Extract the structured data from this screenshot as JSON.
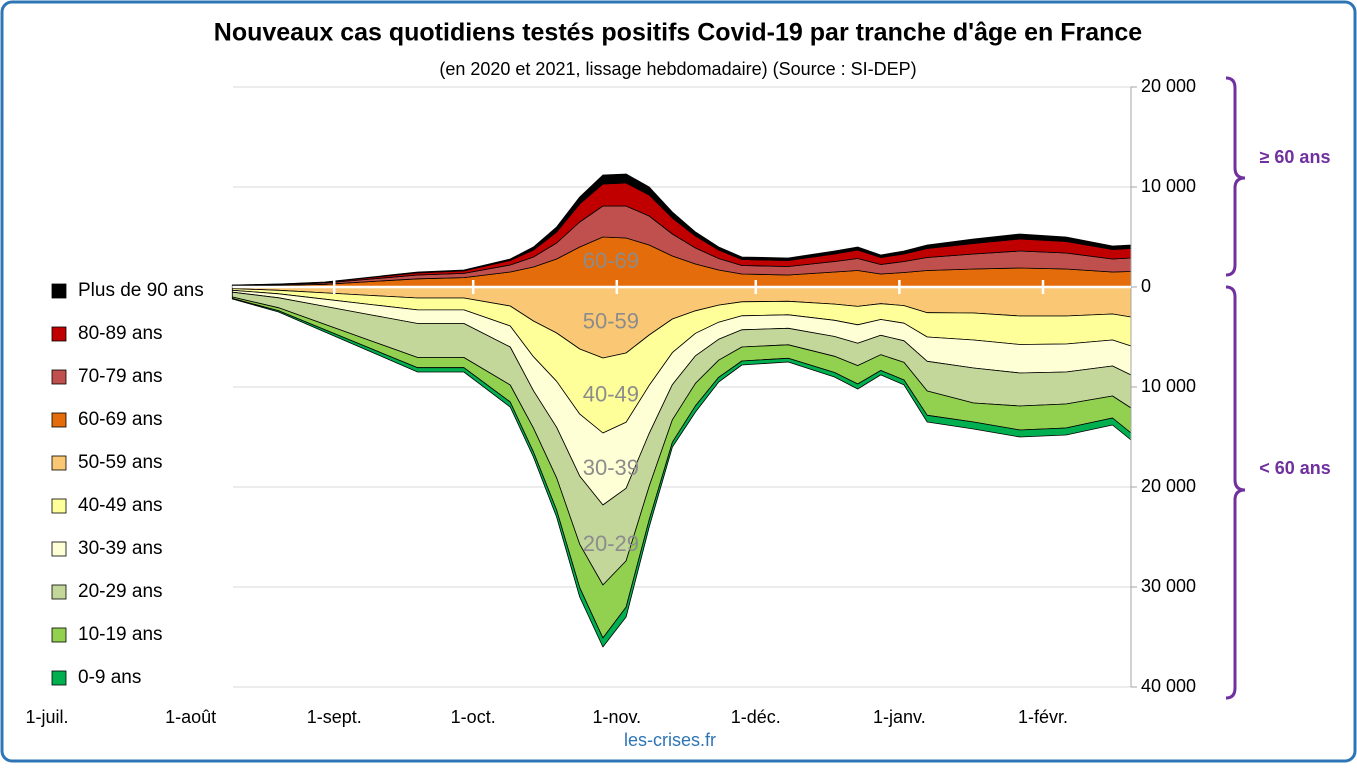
{
  "chart_data": {
    "type": "area",
    "stacked": true,
    "title": "Nouveaux cas quotidiens testés positifs Covid-19 par tranche d'âge en France",
    "subtitle": "(en 2020 et 2021, lissage hebdomadaire) (Source : SI-DEP)",
    "x": [
      40,
      50,
      60,
      70,
      80,
      90,
      100,
      105,
      110,
      115,
      120,
      125,
      130,
      135,
      140,
      145,
      150,
      160,
      170,
      175,
      180,
      185,
      190,
      200,
      210,
      220,
      230,
      234
    ],
    "xlim": [
      0,
      234
    ],
    "xticks": [
      {
        "value": 0,
        "label": "1-juil."
      },
      {
        "value": 31,
        "label": "1-août"
      },
      {
        "value": 62,
        "label": "1-sept."
      },
      {
        "value": 92,
        "label": "1-oct."
      },
      {
        "value": 123,
        "label": "1-nov."
      },
      {
        "value": 153,
        "label": "1-déc."
      },
      {
        "value": 184,
        "label": "1-janv."
      },
      {
        "value": 215,
        "label": "1-févr."
      }
    ],
    "ylim": [
      -40000,
      20000
    ],
    "yticks": [
      {
        "value": 20000,
        "label": "20 000"
      },
      {
        "value": 10000,
        "label": "10 000"
      },
      0,
      {
        "value": -10000,
        "label": "10 000"
      },
      {
        "value": -20000,
        "label": "20 000"
      },
      {
        "value": -30000,
        "label": "30 000"
      },
      {
        "value": -40000,
        "label": "40 000"
      }
    ],
    "grid": true,
    "legend": "left",
    "series": [
      {
        "name": "Plus de 90 ans",
        "color": "#000000",
        "values": [
          10,
          15,
          25,
          50,
          75,
          85,
          150,
          300,
          500,
          700,
          900,
          900,
          800,
          600,
          400,
          300,
          250,
          250,
          300,
          300,
          250,
          300,
          350,
          450,
          500,
          450,
          350,
          350
        ]
      },
      {
        "name": "80-89 ans",
        "color": "#c00000",
        "values": [
          30,
          45,
          75,
          150,
          225,
          255,
          450,
          700,
          1100,
          1800,
          2200,
          2300,
          2100,
          1600,
          1200,
          850,
          600,
          600,
          750,
          850,
          700,
          750,
          900,
          1050,
          1200,
          1150,
          950,
          950
        ]
      },
      {
        "name": "70-79 ans",
        "color": "#c0504d",
        "values": [
          50,
          75,
          125,
          250,
          375,
          425,
          700,
          1000,
          1600,
          2500,
          3100,
          3200,
          2900,
          2200,
          1600,
          1150,
          850,
          850,
          1050,
          1200,
          950,
          1100,
          1300,
          1500,
          1700,
          1600,
          1300,
          1350
        ]
      },
      {
        "name": "60-69 ans",
        "color": "#e46c0a",
        "values": [
          110,
          165,
          275,
          550,
          825,
          935,
          1500,
          2000,
          2800,
          4000,
          5000,
          4900,
          4200,
          3100,
          2300,
          1700,
          1300,
          1200,
          1500,
          1650,
          1300,
          1450,
          1650,
          1800,
          1900,
          1800,
          1500,
          1550
        ]
      },
      {
        "name": "50-59 ans",
        "color": "#fac775",
        "values": [
          -160,
          -330,
          -590,
          -850,
          -1100,
          -1100,
          -1900,
          -3400,
          -4600,
          -6200,
          -7100,
          -6600,
          -4800,
          -3200,
          -2380,
          -1810,
          -1480,
          -1430,
          -1710,
          -1940,
          -1670,
          -1860,
          -2570,
          -2600,
          -2900,
          -2900,
          -2700,
          -3000
        ]
      },
      {
        "name": "40-49 ans",
        "color": "#ffff99",
        "values": [
          -170,
          -350,
          -630,
          -910,
          -1190,
          -1190,
          -2000,
          -3570,
          -4830,
          -6510,
          -7500,
          -6930,
          -5040,
          -3360,
          -2250,
          -1710,
          -1400,
          -1350,
          -1620,
          -1840,
          -1580,
          -1760,
          -2430,
          -2700,
          -2850,
          -2800,
          -2600,
          -2900
        ]
      },
      {
        "name": "30-39 ans",
        "color": "#ffffd5",
        "values": [
          -190,
          -400,
          -720,
          -1040,
          -1360,
          -1360,
          -2100,
          -3400,
          -4600,
          -6200,
          -7200,
          -6600,
          -4800,
          -3200,
          -2250,
          -1710,
          -1400,
          -1350,
          -1620,
          -1840,
          -1580,
          -1760,
          -2430,
          -2800,
          -2850,
          -2800,
          -2600,
          -2900
        ]
      },
      {
        "name": "20-29 ans",
        "color": "#c4d79b",
        "values": [
          -480,
          -1000,
          -1800,
          -2600,
          -3400,
          -3400,
          -3800,
          -3740,
          -5060,
          -6820,
          -8000,
          -7260,
          -5280,
          -3520,
          -2750,
          -2090,
          -1720,
          -1650,
          -1980,
          -2240,
          -1940,
          -2160,
          -2970,
          -3500,
          -3300,
          -3200,
          -3000,
          -3300
        ]
      },
      {
        "name": "10-19 ans",
        "color": "#92d050",
        "values": [
          -140,
          -300,
          -540,
          -780,
          -1020,
          -1020,
          -1700,
          -2380,
          -3220,
          -4340,
          -5300,
          -4620,
          -3360,
          -2240,
          -2250,
          -1710,
          -1400,
          -1350,
          -1620,
          -1840,
          -1580,
          -1760,
          -2430,
          -1900,
          -2400,
          -2400,
          -2200,
          -2500
        ]
      },
      {
        "name": "0-9 ans",
        "color": "#00b050",
        "values": [
          -60,
          -120,
          -220,
          -320,
          -430,
          -430,
          -500,
          -510,
          -690,
          -930,
          -900,
          -990,
          -720,
          -480,
          -620,
          -470,
          -400,
          -370,
          -450,
          -500,
          -440,
          -490,
          -670,
          -700,
          -700,
          -700,
          -700,
          -700
        ]
      }
    ],
    "annotations": [
      "60-69",
      "50-59",
      "40-49",
      "30-39",
      "20-29"
    ],
    "brackets": [
      "≥ 60 ans",
      "< 60 ans"
    ]
  },
  "footer": "les-crises.fr"
}
